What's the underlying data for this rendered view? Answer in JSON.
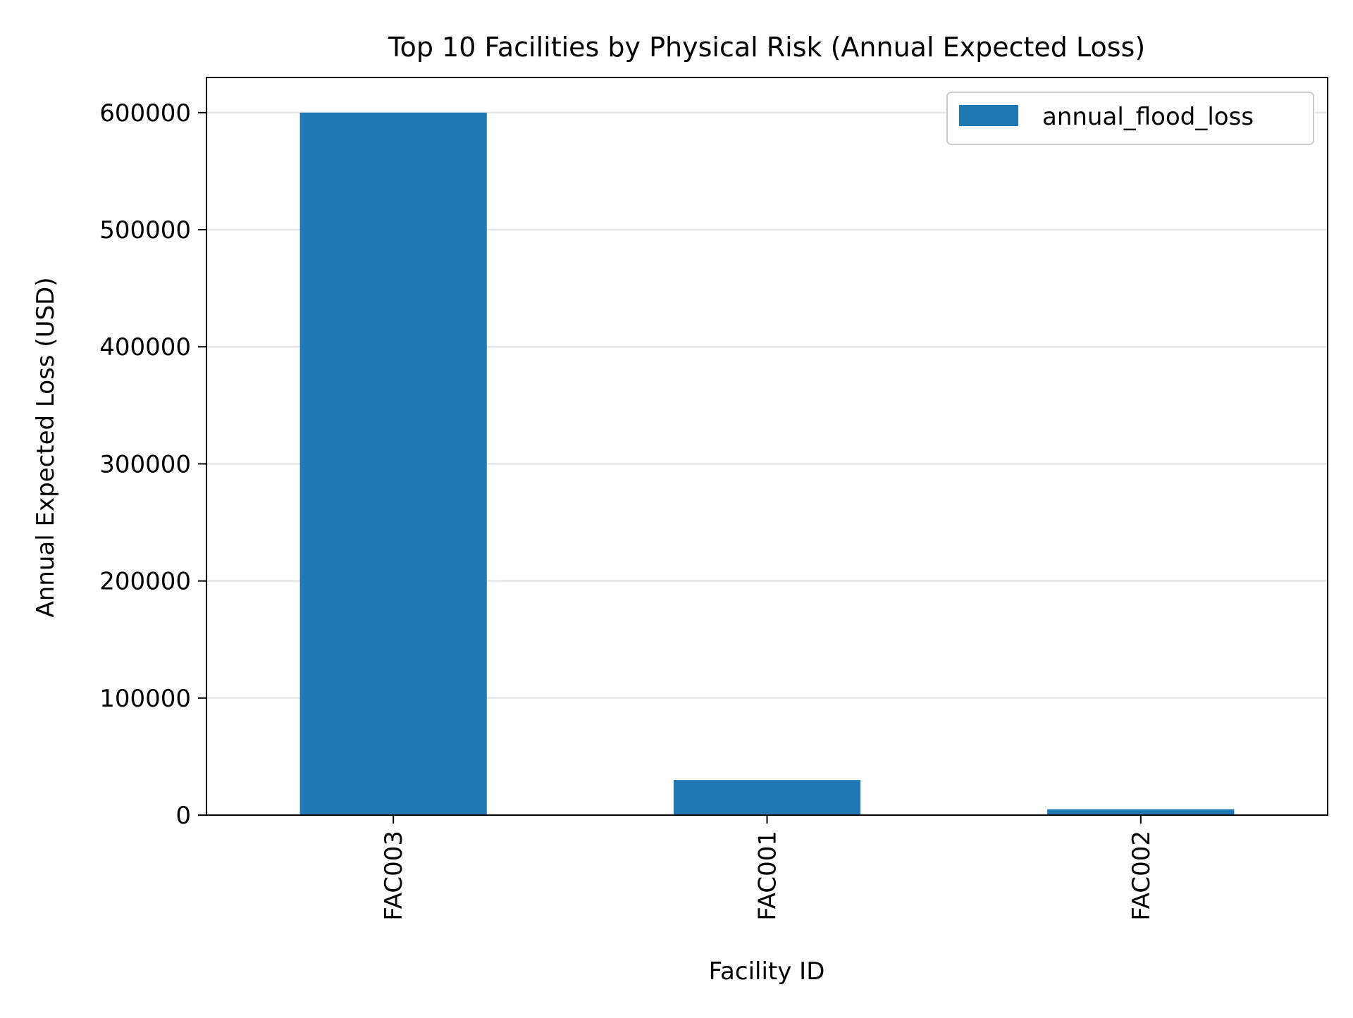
{
  "chart_data": {
    "type": "bar",
    "title": "Top 10 Facilities by Physical Risk (Annual Expected Loss)",
    "xlabel": "Facility ID",
    "ylabel": "Annual Expected Loss (USD)",
    "categories": [
      "FAC003",
      "FAC001",
      "FAC002"
    ],
    "series": [
      {
        "name": "annual_flood_loss",
        "values": [
          600000,
          30000,
          5000
        ]
      }
    ],
    "ylim": [
      0,
      630000
    ],
    "yticks": [
      0,
      100000,
      200000,
      300000,
      400000,
      500000,
      600000
    ],
    "grid": "horizontal",
    "legend_position": "top-right",
    "colors": {
      "bar": "#1f77b4",
      "grid": "#e6e6e6",
      "axis": "#000000"
    }
  }
}
